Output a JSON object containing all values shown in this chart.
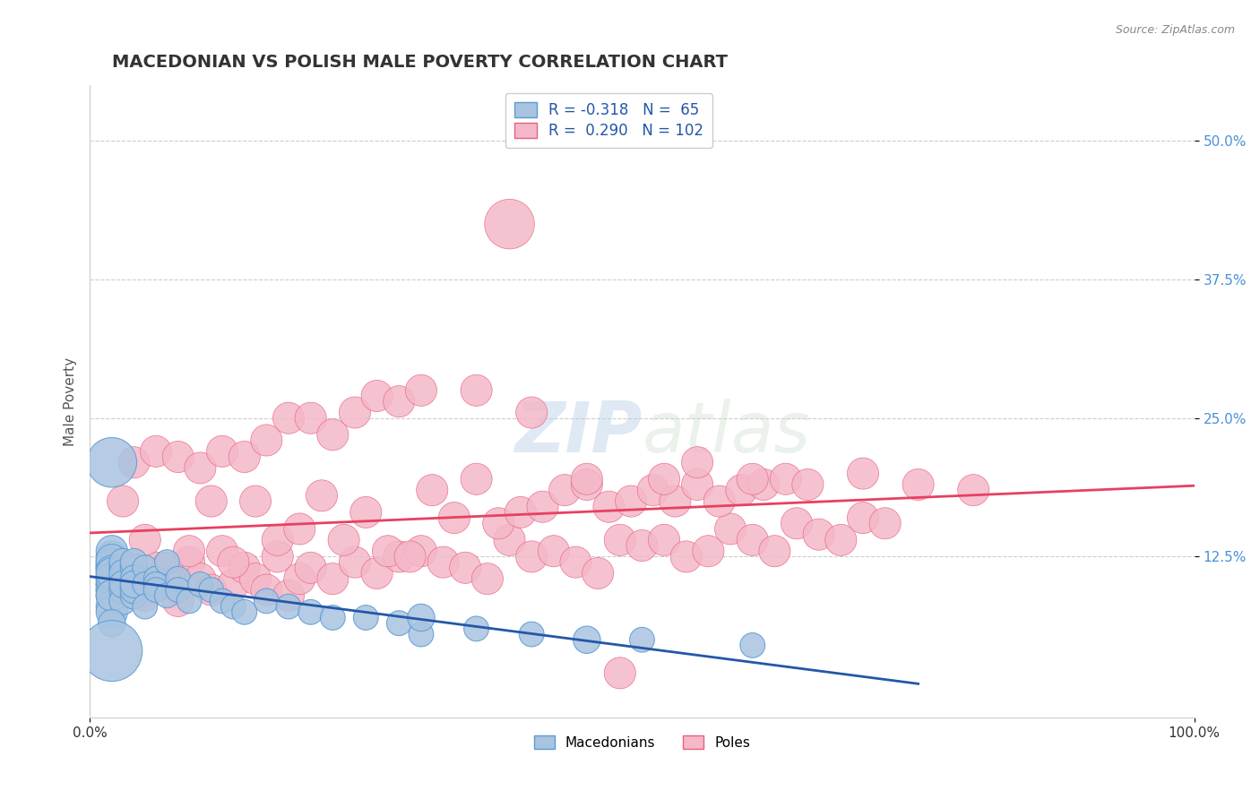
{
  "title": "MACEDONIAN VS POLISH MALE POVERTY CORRELATION CHART",
  "source": "Source: ZipAtlas.com",
  "ylabel": "Male Poverty",
  "xlim": [
    0,
    1
  ],
  "ylim": [
    -0.02,
    0.55
  ],
  "ytick_positions": [
    0.125,
    0.25,
    0.375,
    0.5
  ],
  "ytick_labels": [
    "12.5%",
    "25.0%",
    "37.5%",
    "50.0%"
  ],
  "macedonian_color": "#a8c4e0",
  "macedonian_edge": "#5b9bd5",
  "polish_color": "#f4b8c8",
  "polish_edge": "#e86080",
  "macedonian_R": -0.318,
  "macedonian_N": 65,
  "polish_R": 0.29,
  "polish_N": 102,
  "macedonian_line_color": "#2457a8",
  "polish_line_color": "#e84060",
  "legend_color": "#2457a8",
  "watermark_zip": "ZIP",
  "watermark_atlas": "atlas",
  "background_color": "#ffffff",
  "macedonian_x": [
    0.02,
    0.02,
    0.02,
    0.02,
    0.02,
    0.02,
    0.02,
    0.02,
    0.02,
    0.02,
    0.02,
    0.02,
    0.02,
    0.02,
    0.02,
    0.02,
    0.02,
    0.02,
    0.02,
    0.02,
    0.03,
    0.03,
    0.03,
    0.03,
    0.03,
    0.03,
    0.03,
    0.04,
    0.04,
    0.04,
    0.04,
    0.04,
    0.04,
    0.05,
    0.05,
    0.05,
    0.06,
    0.06,
    0.06,
    0.07,
    0.07,
    0.08,
    0.08,
    0.09,
    0.1,
    0.11,
    0.12,
    0.13,
    0.14,
    0.16,
    0.18,
    0.2,
    0.22,
    0.25,
    0.28,
    0.3,
    0.35,
    0.4,
    0.5,
    0.6,
    0.02,
    0.02,
    0.3,
    0.45,
    0.02
  ],
  "macedonian_y": [
    0.105,
    0.115,
    0.12,
    0.095,
    0.1,
    0.115,
    0.108,
    0.09,
    0.125,
    0.13,
    0.118,
    0.122,
    0.1,
    0.112,
    0.095,
    0.105,
    0.08,
    0.075,
    0.11,
    0.09,
    0.115,
    0.12,
    0.105,
    0.095,
    0.11,
    0.085,
    0.1,
    0.115,
    0.09,
    0.12,
    0.105,
    0.095,
    0.1,
    0.115,
    0.1,
    0.08,
    0.105,
    0.1,
    0.095,
    0.12,
    0.09,
    0.105,
    0.095,
    0.085,
    0.1,
    0.095,
    0.085,
    0.08,
    0.075,
    0.085,
    0.08,
    0.075,
    0.07,
    0.07,
    0.065,
    0.055,
    0.06,
    0.055,
    0.05,
    0.045,
    0.21,
    0.065,
    0.07,
    0.05,
    0.04
  ],
  "macedonian_size": [
    80,
    80,
    80,
    80,
    80,
    80,
    80,
    80,
    80,
    80,
    80,
    80,
    80,
    80,
    80,
    80,
    80,
    80,
    80,
    80,
    60,
    60,
    60,
    60,
    60,
    60,
    60,
    60,
    60,
    60,
    60,
    60,
    60,
    50,
    50,
    50,
    50,
    50,
    50,
    50,
    50,
    50,
    50,
    50,
    50,
    50,
    50,
    50,
    50,
    50,
    50,
    50,
    50,
    50,
    50,
    50,
    50,
    50,
    50,
    50,
    200,
    60,
    60,
    60,
    300
  ],
  "polish_x": [
    0.02,
    0.03,
    0.04,
    0.05,
    0.06,
    0.07,
    0.08,
    0.09,
    0.1,
    0.11,
    0.12,
    0.13,
    0.14,
    0.15,
    0.16,
    0.17,
    0.18,
    0.19,
    0.2,
    0.22,
    0.24,
    0.26,
    0.28,
    0.3,
    0.32,
    0.34,
    0.36,
    0.38,
    0.4,
    0.42,
    0.44,
    0.46,
    0.48,
    0.5,
    0.52,
    0.54,
    0.56,
    0.58,
    0.6,
    0.62,
    0.64,
    0.66,
    0.68,
    0.7,
    0.72,
    0.03,
    0.05,
    0.07,
    0.09,
    0.11,
    0.13,
    0.15,
    0.17,
    0.19,
    0.21,
    0.23,
    0.25,
    0.27,
    0.29,
    0.31,
    0.33,
    0.35,
    0.37,
    0.39,
    0.41,
    0.43,
    0.45,
    0.47,
    0.49,
    0.51,
    0.53,
    0.55,
    0.57,
    0.59,
    0.61,
    0.63,
    0.04,
    0.06,
    0.08,
    0.1,
    0.12,
    0.14,
    0.16,
    0.18,
    0.2,
    0.22,
    0.24,
    0.26,
    0.28,
    0.3,
    0.52,
    0.6,
    0.7,
    0.75,
    0.8,
    0.55,
    0.65,
    0.4,
    0.35,
    0.45,
    0.38,
    0.48
  ],
  "polish_y": [
    0.115,
    0.095,
    0.105,
    0.09,
    0.115,
    0.1,
    0.085,
    0.12,
    0.105,
    0.095,
    0.13,
    0.1,
    0.115,
    0.105,
    0.095,
    0.125,
    0.09,
    0.105,
    0.115,
    0.105,
    0.12,
    0.11,
    0.125,
    0.13,
    0.12,
    0.115,
    0.105,
    0.14,
    0.125,
    0.13,
    0.12,
    0.11,
    0.14,
    0.135,
    0.14,
    0.125,
    0.13,
    0.15,
    0.14,
    0.13,
    0.155,
    0.145,
    0.14,
    0.16,
    0.155,
    0.175,
    0.14,
    0.115,
    0.13,
    0.175,
    0.12,
    0.175,
    0.14,
    0.15,
    0.18,
    0.14,
    0.165,
    0.13,
    0.125,
    0.185,
    0.16,
    0.195,
    0.155,
    0.165,
    0.17,
    0.185,
    0.19,
    0.17,
    0.175,
    0.185,
    0.175,
    0.19,
    0.175,
    0.185,
    0.19,
    0.195,
    0.21,
    0.22,
    0.215,
    0.205,
    0.22,
    0.215,
    0.23,
    0.25,
    0.25,
    0.235,
    0.255,
    0.27,
    0.265,
    0.275,
    0.195,
    0.195,
    0.2,
    0.19,
    0.185,
    0.21,
    0.19,
    0.255,
    0.275,
    0.195,
    0.425,
    0.02
  ],
  "polish_size": [
    80,
    80,
    80,
    80,
    80,
    80,
    80,
    80,
    80,
    80,
    80,
    80,
    80,
    80,
    80,
    80,
    80,
    80,
    80,
    80,
    80,
    80,
    80,
    80,
    80,
    80,
    80,
    80,
    80,
    80,
    80,
    80,
    80,
    80,
    80,
    80,
    80,
    80,
    80,
    80,
    80,
    80,
    80,
    80,
    80,
    80,
    80,
    80,
    80,
    80,
    80,
    80,
    80,
    80,
    80,
    80,
    80,
    80,
    80,
    80,
    80,
    80,
    80,
    80,
    80,
    80,
    80,
    80,
    80,
    80,
    80,
    80,
    80,
    80,
    80,
    80,
    80,
    80,
    80,
    80,
    80,
    80,
    80,
    80,
    80,
    80,
    80,
    80,
    80,
    80,
    80,
    80,
    80,
    80,
    80,
    80,
    80,
    80,
    80,
    80,
    200,
    80
  ]
}
